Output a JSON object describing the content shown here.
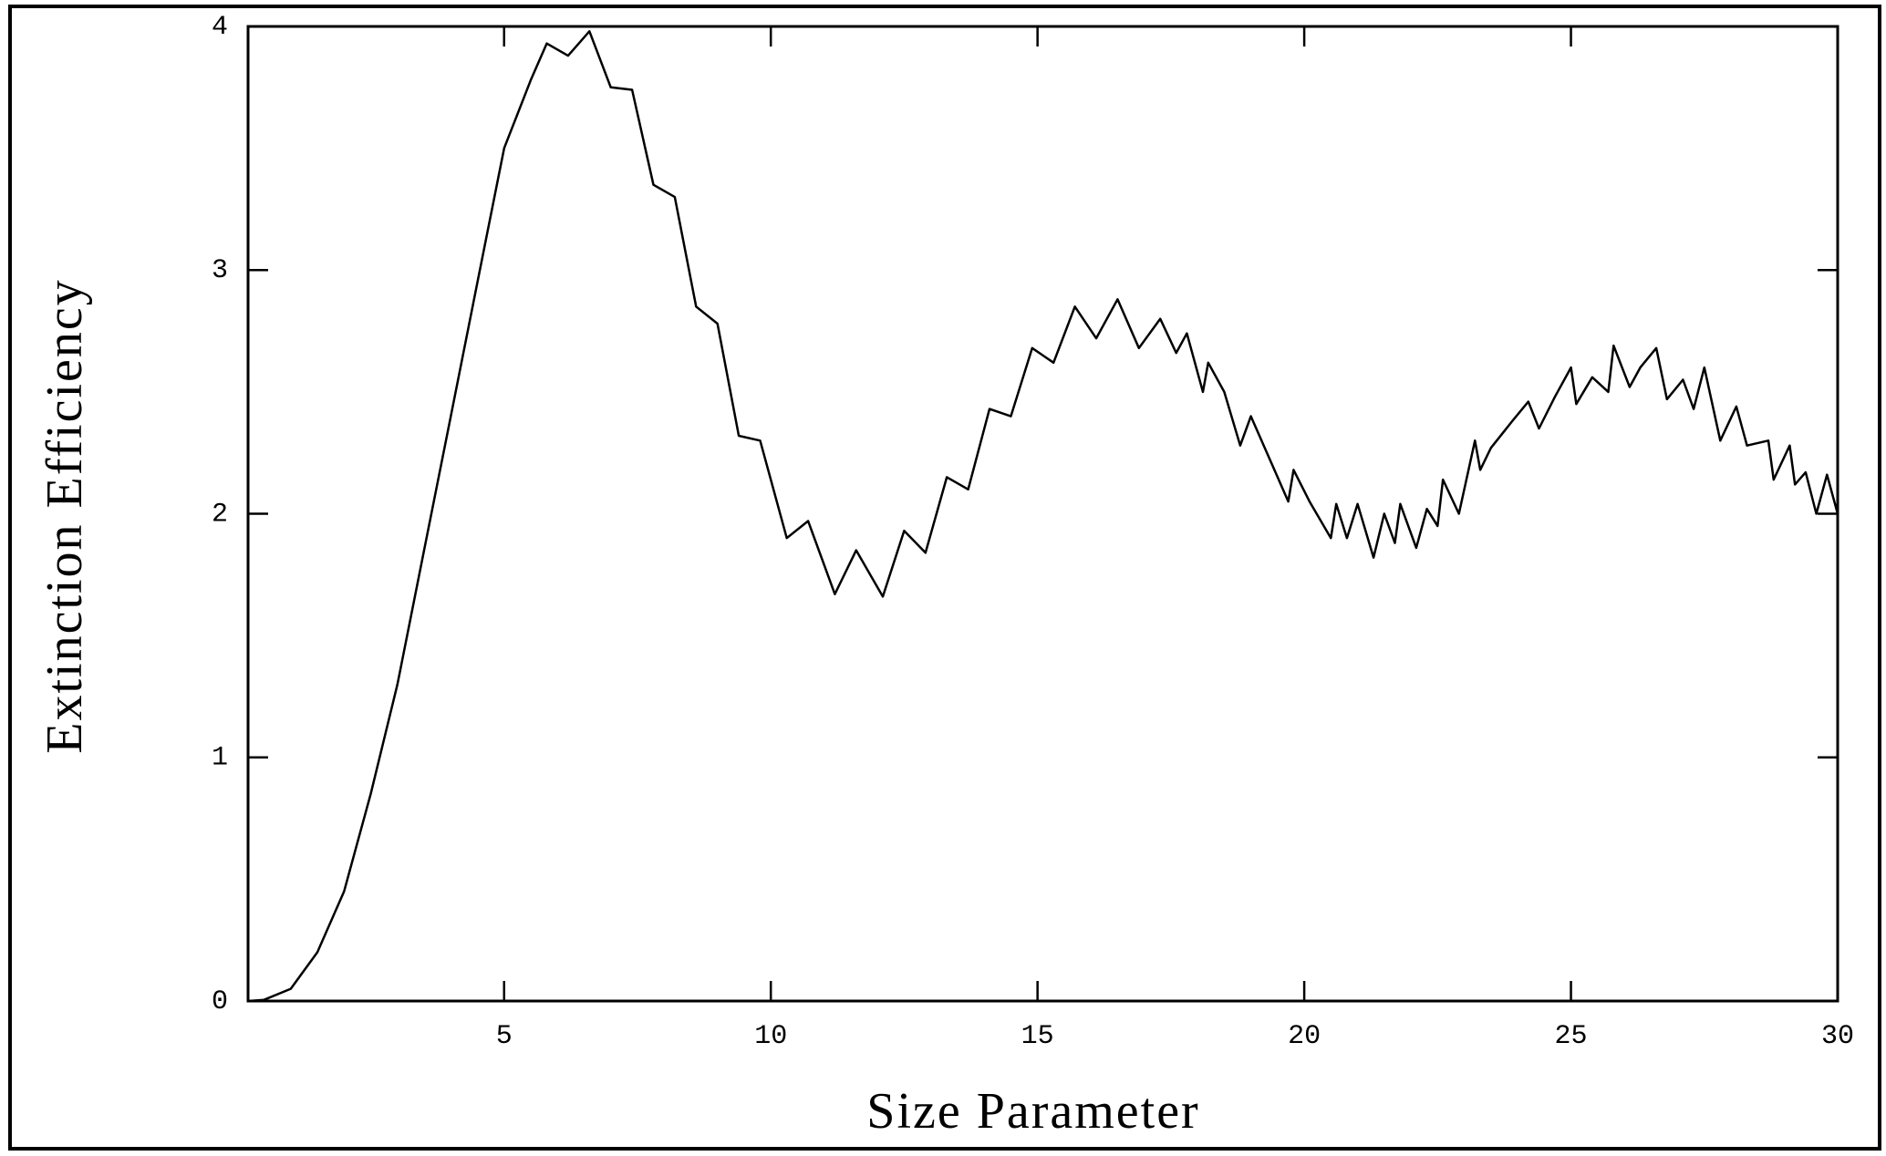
{
  "chart_data": {
    "type": "line",
    "x_label": "Size Parameter",
    "y_label": "Extinction Efficiency",
    "x": [
      0.2,
      0.5,
      1,
      1.5,
      2,
      2.5,
      3,
      3.5,
      4,
      4.5,
      5,
      5.5,
      5.8,
      6.2,
      6.6,
      7,
      7.4,
      7.8,
      8.2,
      8.6,
      9,
      9.4,
      9.8,
      10.3,
      10.7,
      11.2,
      11.6,
      12.1,
      12.5,
      12.9,
      13.3,
      13.7,
      14.1,
      14.5,
      14.9,
      15.3,
      15.7,
      16.1,
      16.5,
      16.9,
      17.3,
      17.6,
      17.8,
      18.1,
      18.2,
      18.5,
      18.8,
      19.0,
      19.3,
      19.7,
      19.8,
      20.1,
      20.5,
      20.6,
      20.8,
      21.0,
      21.3,
      21.5,
      21.7,
      21.8,
      22.1,
      22.3,
      22.5,
      22.6,
      22.9,
      23.2,
      23.3,
      23.5,
      23.9,
      24.2,
      24.4,
      24.7,
      25.0,
      25.1,
      25.4,
      25.7,
      25.8,
      26.1,
      26.3,
      26.6,
      26.8,
      27.1,
      27.3,
      27.5,
      27.8,
      28.1,
      28.3,
      28.7,
      28.8,
      29.1,
      29.2,
      29.4,
      29.6,
      29.8,
      30
    ],
    "series": [
      {
        "color": "#000000",
        "values": [
          0,
          0.005,
          0.05,
          0.2,
          0.45,
          0.85,
          1.3,
          1.85,
          2.4,
          2.95,
          3.5,
          3.78,
          3.93,
          3.88,
          3.98,
          3.75,
          3.74,
          3.35,
          3.3,
          2.85,
          2.78,
          2.32,
          2.3,
          1.9,
          1.97,
          1.67,
          1.85,
          1.66,
          1.93,
          1.84,
          2.15,
          2.1,
          2.43,
          2.4,
          2.68,
          2.62,
          2.85,
          2.72,
          2.88,
          2.68,
          2.8,
          2.66,
          2.74,
          2.5,
          2.62,
          2.5,
          2.28,
          2.4,
          2.25,
          2.05,
          2.18,
          2.05,
          1.9,
          2.04,
          1.9,
          2.04,
          1.82,
          2.0,
          1.88,
          2.04,
          1.86,
          2.02,
          1.95,
          2.14,
          2.0,
          2.3,
          2.18,
          2.27,
          2.38,
          2.46,
          2.35,
          2.48,
          2.6,
          2.45,
          2.56,
          2.5,
          2.69,
          2.52,
          2.6,
          2.68,
          2.47,
          2.55,
          2.43,
          2.6,
          2.3,
          2.44,
          2.28,
          2.3,
          2.14,
          2.28,
          2.12,
          2.17,
          2.0,
          2.16,
          2.0
        ]
      }
    ],
    "xlim": [
      0.2,
      30
    ],
    "xticks": [
      5,
      10,
      15,
      20,
      25,
      30
    ],
    "ylim": [
      0,
      4
    ],
    "yticks": [
      0,
      1,
      2,
      3,
      4
    ]
  }
}
